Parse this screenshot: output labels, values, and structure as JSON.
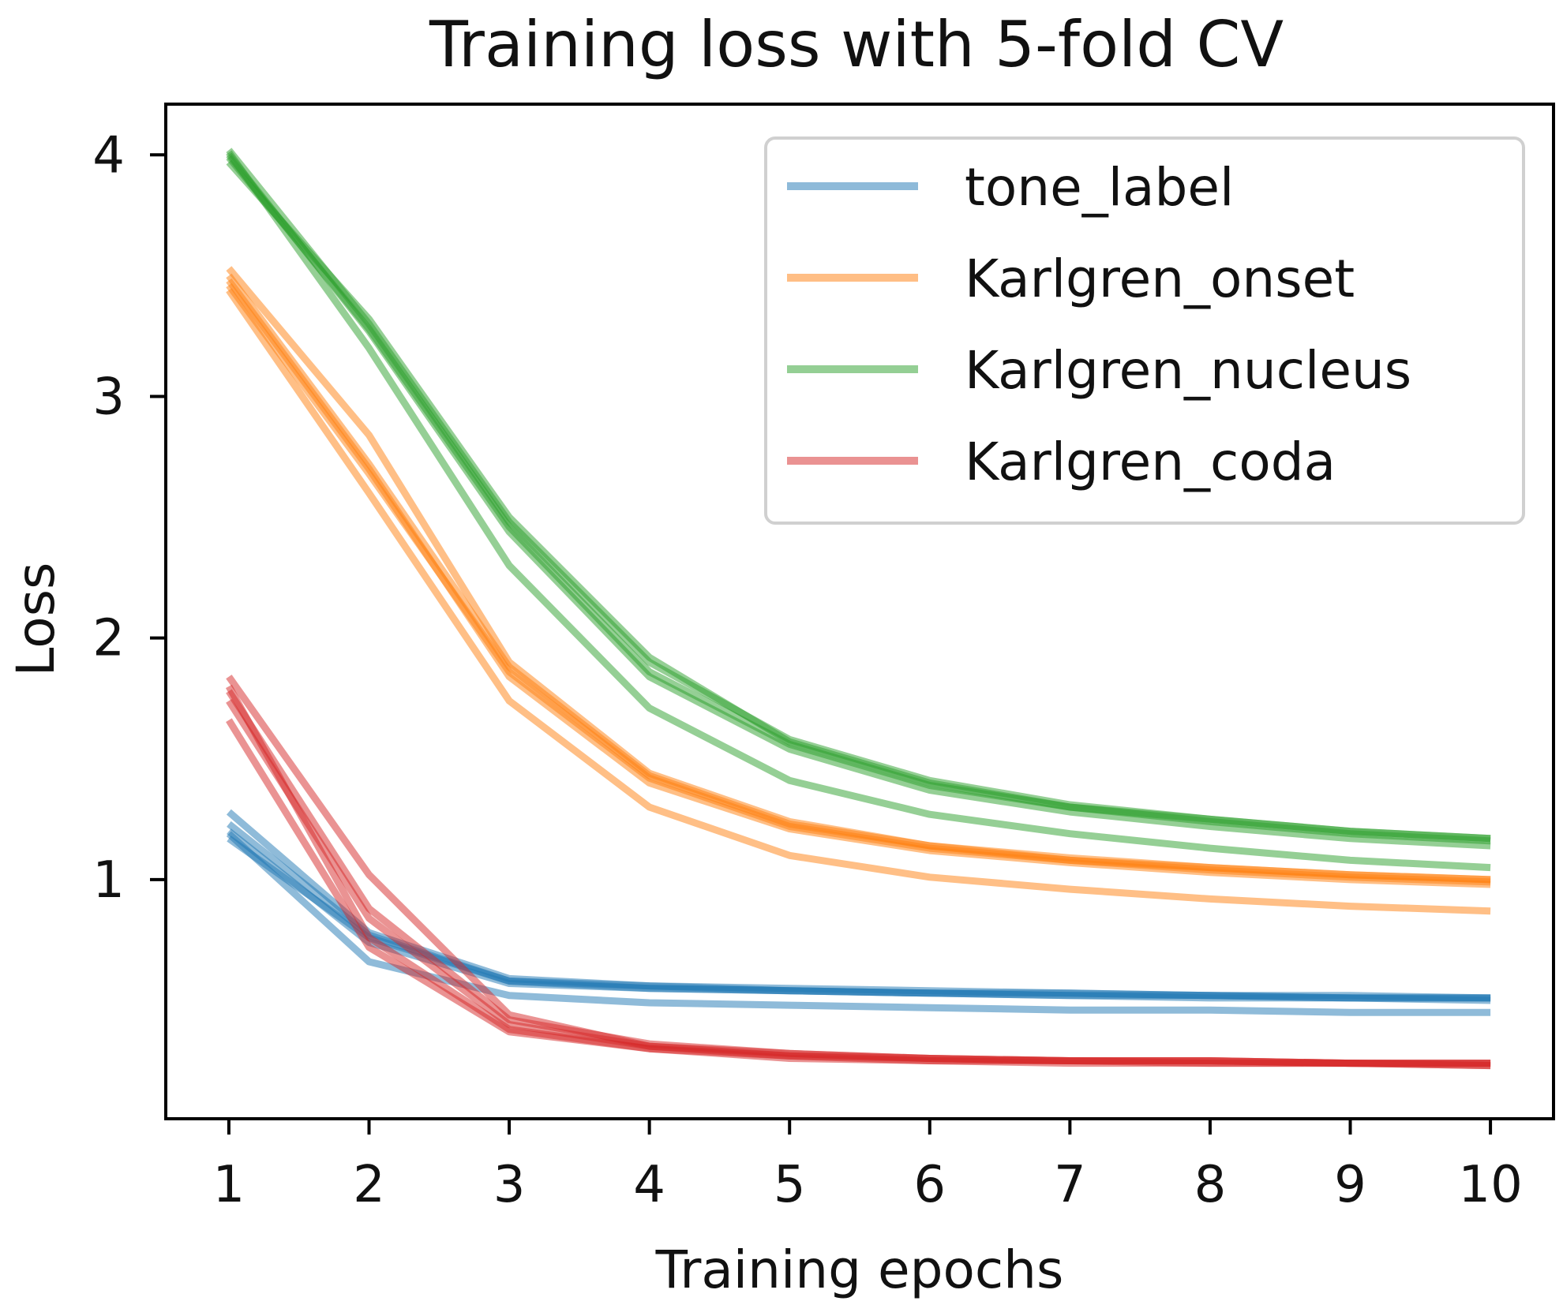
{
  "chart_data": {
    "type": "line",
    "title": "Training loss with 5-fold CV",
    "xlabel": "Training epochs",
    "ylabel": "Loss",
    "x": [
      1,
      2,
      3,
      4,
      5,
      6,
      7,
      8,
      9,
      10
    ],
    "x_ticks": [
      "1",
      "2",
      "3",
      "4",
      "5",
      "6",
      "7",
      "8",
      "9",
      "10"
    ],
    "y_ticks": [
      "1",
      "2",
      "3",
      "4"
    ],
    "xlim": [
      0.55,
      10.45
    ],
    "ylim": [
      0.01,
      4.21
    ],
    "grid": false,
    "legend_position": "top-right",
    "series": [
      {
        "name": "tone_label",
        "color": "#1f77b4",
        "folds": [
          [
            1.17,
            0.76,
            0.58,
            0.55,
            0.54,
            0.53,
            0.52,
            0.52,
            0.51,
            0.51
          ],
          [
            1.2,
            0.74,
            0.57,
            0.55,
            0.54,
            0.53,
            0.52,
            0.51,
            0.51,
            0.5
          ],
          [
            1.23,
            0.77,
            0.58,
            0.56,
            0.54,
            0.53,
            0.53,
            0.52,
            0.51,
            0.51
          ],
          [
            1.28,
            0.78,
            0.59,
            0.56,
            0.55,
            0.54,
            0.53,
            0.52,
            0.52,
            0.51
          ],
          [
            1.19,
            0.66,
            0.52,
            0.49,
            0.48,
            0.47,
            0.46,
            0.46,
            0.45,
            0.45
          ]
        ]
      },
      {
        "name": "Karlgren_onset",
        "color": "#ff7f0e",
        "folds": [
          [
            3.46,
            2.68,
            1.86,
            1.42,
            1.22,
            1.13,
            1.08,
            1.04,
            1.01,
            0.99
          ],
          [
            3.5,
            2.72,
            1.88,
            1.43,
            1.23,
            1.14,
            1.08,
            1.05,
            1.02,
            1.0
          ],
          [
            3.53,
            2.84,
            1.9,
            1.44,
            1.24,
            1.14,
            1.09,
            1.05,
            1.02,
            1.0
          ],
          [
            3.48,
            2.7,
            1.84,
            1.4,
            1.21,
            1.12,
            1.07,
            1.03,
            1.0,
            0.98
          ],
          [
            3.44,
            2.6,
            1.74,
            1.3,
            1.1,
            1.01,
            0.96,
            0.92,
            0.89,
            0.87
          ]
        ]
      },
      {
        "name": "Karlgren_nucleus",
        "color": "#2ca02c",
        "folds": [
          [
            3.99,
            3.28,
            2.46,
            1.86,
            1.56,
            1.39,
            1.3,
            1.25,
            1.2,
            1.17
          ],
          [
            4.02,
            3.3,
            2.48,
            1.9,
            1.58,
            1.41,
            1.31,
            1.25,
            1.2,
            1.17
          ],
          [
            3.97,
            3.32,
            2.5,
            1.92,
            1.57,
            1.4,
            1.3,
            1.24,
            1.19,
            1.16
          ],
          [
            4.0,
            3.27,
            2.44,
            1.84,
            1.54,
            1.37,
            1.28,
            1.22,
            1.17,
            1.14
          ],
          [
            4.01,
            3.2,
            2.3,
            1.71,
            1.41,
            1.27,
            1.19,
            1.13,
            1.08,
            1.05
          ]
        ]
      },
      {
        "name": "Karlgren_coda",
        "color": "#d62728",
        "folds": [
          [
            1.84,
            1.02,
            0.44,
            0.31,
            0.28,
            0.26,
            0.25,
            0.25,
            0.24,
            0.24
          ],
          [
            1.78,
            0.88,
            0.42,
            0.32,
            0.28,
            0.26,
            0.25,
            0.25,
            0.24,
            0.24
          ],
          [
            1.74,
            0.84,
            0.4,
            0.31,
            0.27,
            0.26,
            0.25,
            0.25,
            0.24,
            0.24
          ],
          [
            1.8,
            0.76,
            0.38,
            0.3,
            0.27,
            0.25,
            0.25,
            0.24,
            0.24,
            0.23
          ],
          [
            1.66,
            0.72,
            0.37,
            0.3,
            0.26,
            0.25,
            0.24,
            0.24,
            0.24,
            0.23
          ]
        ]
      }
    ]
  }
}
